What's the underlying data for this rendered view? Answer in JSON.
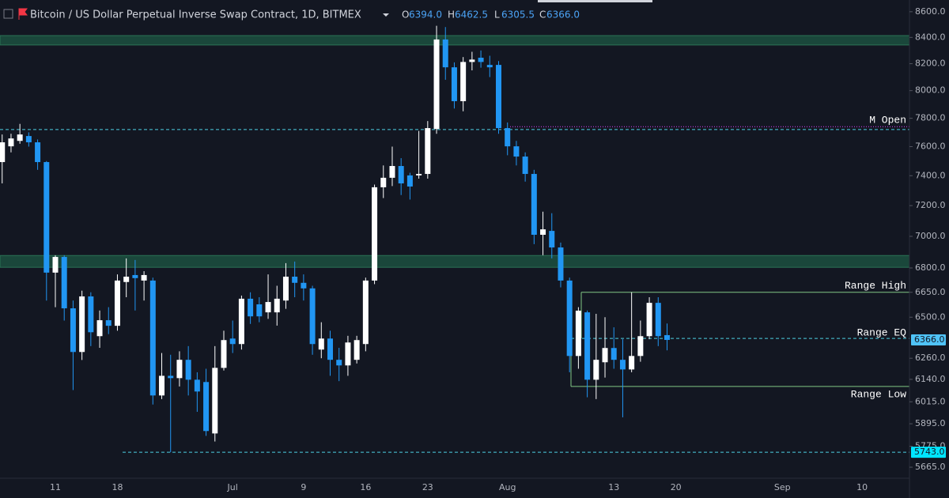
{
  "header": {
    "title": "Bitcoin / US Dollar Perpetual Inverse Swap Contract, 1D, BITMEX",
    "ohlc": [
      {
        "key": "O",
        "value": "6394.0"
      },
      {
        "key": "H",
        "value": "6462.5"
      },
      {
        "key": "L",
        "value": "6305.5"
      },
      {
        "key": "C",
        "value": "6366.0"
      }
    ]
  },
  "chart_data": {
    "type": "candlestick",
    "yscale": "log",
    "up_color": "#ffffff",
    "down_color": "#2196f3",
    "categories": [
      null,
      null,
      null,
      null,
      null,
      null,
      "11",
      null,
      null,
      null,
      null,
      null,
      null,
      "18",
      null,
      null,
      null,
      null,
      null,
      null,
      null,
      null,
      null,
      null,
      null,
      null,
      "Jul",
      null,
      null,
      null,
      null,
      null,
      null,
      null,
      "9",
      null,
      null,
      null,
      null,
      null,
      null,
      "16",
      null,
      null,
      null,
      null,
      null,
      null,
      "23",
      null,
      null,
      null,
      null,
      null,
      null,
      null,
      null,
      "Aug",
      null,
      null,
      null,
      null,
      null,
      null,
      null,
      null,
      null,
      null,
      null,
      "13",
      null,
      null,
      null,
      null,
      null,
      null,
      "20",
      null,
      null,
      null,
      null,
      null,
      null,
      null,
      null,
      null,
      null,
      null,
      "Sep",
      null,
      null,
      null,
      null,
      null,
      null,
      null,
      null,
      "10",
      null,
      null,
      null,
      null,
      null
    ],
    "open": [
      7493,
      7602,
      7640,
      7674,
      7630,
      7493,
      6771,
      6869,
      6553,
      6296,
      6625,
      6388,
      6482,
      6449,
      6713,
      6756,
      6722,
      6722,
      6050,
      6160,
      6147,
      6251,
      6138,
      6125,
      5843,
      6205,
      6374,
      6342,
      6611,
      6577,
      6529,
      6529,
      6600,
      6746,
      6708,
      6674,
      6310,
      6374,
      6251,
      6219,
      6251,
      6342,
      6722,
      7322,
      7386,
      7466,
      7402,
      7402,
      7412,
      7724,
      8384,
      8173,
      7923,
      8213,
      8245,
      8191,
      8191,
      7730,
      7602,
      7531,
      7412,
      7010,
      7035,
      6929,
      6722,
      6273,
      6529,
      6138,
      6237,
      6319,
      6251,
      6196,
      6273,
      6388,
      6586,
      6394,
      null,
      null,
      null,
      null,
      null,
      null,
      null,
      null,
      null,
      null,
      null,
      null,
      null,
      null,
      null,
      null,
      null,
      null,
      null,
      null,
      null,
      null,
      null,
      null,
      null,
      null,
      null
    ],
    "high": [
      7685,
      7690,
      7760,
      7700,
      7650,
      7500,
      6880,
      6880,
      6600,
      6660,
      6650,
      6540,
      6560,
      6760,
      6860,
      6850,
      6780,
      6740,
      6290,
      6280,
      6300,
      6330,
      6180,
      6200,
      6330,
      6420,
      6480,
      6630,
      6650,
      6620,
      6760,
      6690,
      6830,
      6840,
      6760,
      6690,
      6470,
      6420,
      6320,
      6390,
      6390,
      6740,
      7340,
      7470,
      7600,
      7520,
      7420,
      7710,
      7780,
      8490,
      8480,
      8210,
      8250,
      8290,
      8300,
      8260,
      8220,
      7770,
      7640,
      7560,
      7440,
      7160,
      7150,
      6960,
      6740,
      6560,
      6540,
      6520,
      6500,
      6440,
      6370,
      6650,
      6480,
      6620,
      6620,
      6462.5,
      null,
      null,
      null,
      null,
      null,
      null,
      null,
      null,
      null,
      null,
      null,
      null,
      null,
      null,
      null,
      null,
      null,
      null,
      null,
      null,
      null,
      null,
      null,
      null,
      null,
      null,
      null
    ],
    "low": [
      7348,
      7560,
      7620,
      7600,
      7440,
      6600,
      6560,
      6480,
      6080,
      6250,
      6330,
      6320,
      6400,
      6420,
      6620,
      6540,
      6600,
      6000,
      6030,
      5743,
      6100,
      6050,
      5960,
      5830,
      5800,
      6190,
      6290,
      6310,
      6460,
      6470,
      6490,
      6450,
      6550,
      6620,
      6600,
      6280,
      6260,
      6160,
      6130,
      6160,
      6230,
      6300,
      6700,
      7250,
      7330,
      7270,
      7240,
      7380,
      7380,
      7690,
      8080,
      7870,
      7850,
      8150,
      8170,
      8100,
      7690,
      7540,
      7470,
      7360,
      6950,
      6880,
      6860,
      6680,
      6180,
      6200,
      6040,
      6030,
      6150,
      6200,
      5930,
      6180,
      6240,
      6370,
      6330,
      6305.5,
      null,
      null,
      null,
      null,
      null,
      null,
      null,
      null,
      null,
      null,
      null,
      null,
      null,
      null,
      null,
      null,
      null,
      null,
      null,
      null,
      null,
      null,
      null,
      null,
      null,
      null,
      null
    ],
    "close": [
      7630,
      7657,
      7685,
      7630,
      7493,
      6771,
      6869,
      6553,
      6296,
      6625,
      6411,
      6482,
      6449,
      6722,
      6746,
      6737,
      6756,
      6050,
      6160,
      6147,
      6251,
      6138,
      6072,
      5856,
      6205,
      6365,
      6342,
      6611,
      6505,
      6505,
      6591,
      6611,
      6746,
      6708,
      6674,
      6342,
      6374,
      6251,
      6219,
      6351,
      6365,
      6722,
      7322,
      7386,
      7466,
      7348,
      7327,
      7412,
      7730,
      8384,
      8173,
      7923,
      8213,
      8231,
      8213,
      8173,
      7730,
      7602,
      7531,
      7412,
      7010,
      7045,
      6929,
      6722,
      6273,
      6539,
      6138,
      6251,
      6319,
      6251,
      6196,
      6273,
      6388,
      6586,
      6388,
      6366,
      null,
      null,
      null,
      null,
      null,
      null,
      null,
      null,
      null,
      null,
      null,
      null,
      null,
      null,
      null,
      null,
      null,
      null,
      null,
      null,
      null,
      null,
      null,
      null,
      null,
      null,
      null
    ],
    "ylim": [
      5608,
      8693
    ],
    "yticks": [
      {
        "value": 8600,
        "label": "8600.0"
      },
      {
        "value": 8400,
        "label": "8400.0"
      },
      {
        "value": 8200,
        "label": "8200.0"
      },
      {
        "value": 8000,
        "label": "8000.0"
      },
      {
        "value": 7800,
        "label": "7800.0"
      },
      {
        "value": 7600,
        "label": "7600.0"
      },
      {
        "value": 7400,
        "label": "7400.0"
      },
      {
        "value": 7200,
        "label": "7200.0"
      },
      {
        "value": 7000,
        "label": "7000.0"
      },
      {
        "value": 6800,
        "label": "6800.0"
      },
      {
        "value": 6650,
        "label": "6650.0"
      },
      {
        "value": 6500,
        "label": "6500.0"
      },
      {
        "value": 6260,
        "label": "6260.0"
      },
      {
        "value": 6140,
        "label": "6140.0"
      },
      {
        "value": 6015,
        "label": "6015.0"
      },
      {
        "value": 5895,
        "label": "5895.0"
      },
      {
        "value": 5775,
        "label": "5775.0"
      },
      {
        "value": 5665,
        "label": "5665.0"
      }
    ],
    "zones": [
      {
        "from": 8342,
        "to": 8414,
        "color": "#1b4d3e"
      },
      {
        "from": 6804,
        "to": 6878,
        "color": "#1b4d3e"
      }
    ],
    "levels": [
      {
        "value": 7720,
        "color": "#4dd0e1",
        "style": "dashed"
      },
      {
        "value": 5743,
        "color": "#4dd0e1",
        "style": "dashed"
      },
      {
        "label": "M Open",
        "value": 7740,
        "color": "#e040fb",
        "style": "dotted"
      },
      {
        "label": "Range High",
        "value": 6650,
        "color": "#81c784",
        "style": "solid"
      },
      {
        "label": "Range EQ",
        "value": 6375,
        "color": "#4dd0e1",
        "style": "dashed"
      },
      {
        "label": "Range Low",
        "value": 6100,
        "color": "#81c784",
        "style": "solid"
      }
    ],
    "price_tags": [
      {
        "value": 6366,
        "label": "6366.0",
        "color": "#4fc3f7"
      },
      {
        "value": 5743,
        "label": "5743.0",
        "color": "#00e5ff"
      }
    ],
    "grid": false
  }
}
